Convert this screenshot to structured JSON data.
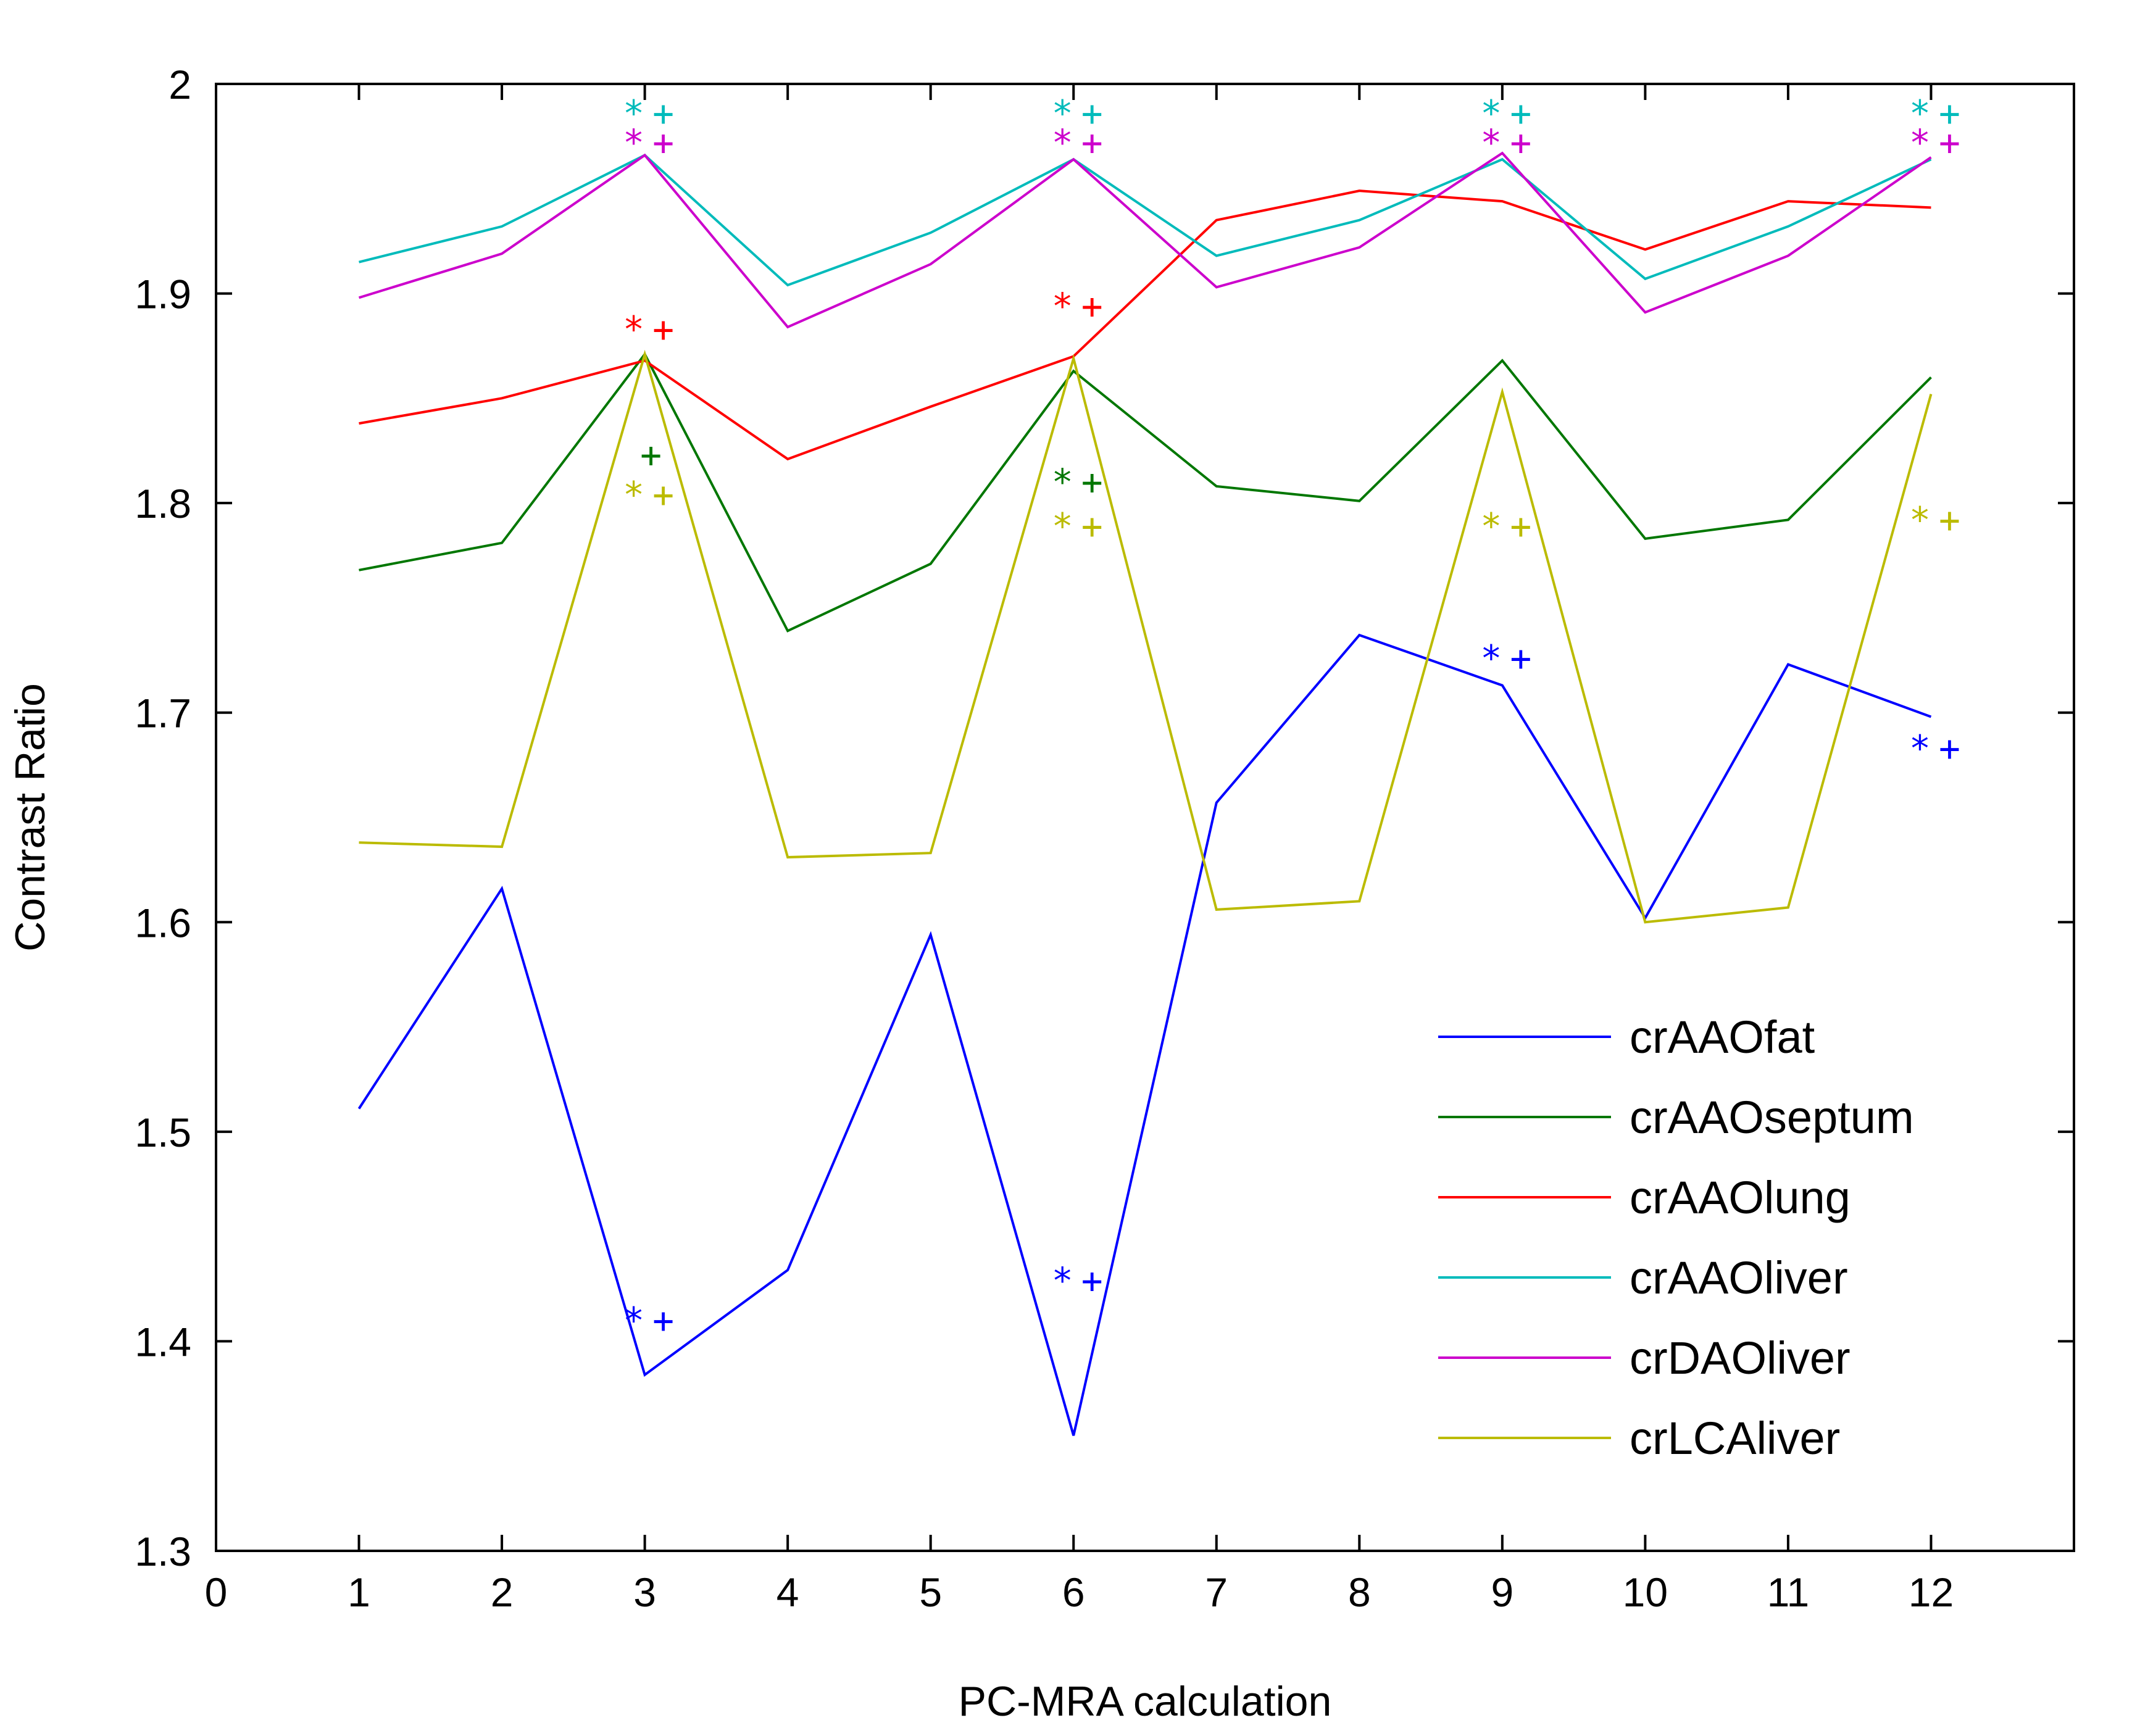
{
  "chart_data": {
    "type": "line",
    "title": "",
    "xlabel": "PC-MRA calculation",
    "ylabel": "Contrast Ratio",
    "xlim": [
      0,
      13
    ],
    "ylim": [
      1.3,
      2.0
    ],
    "xticks": [
      0,
      1,
      2,
      3,
      4,
      5,
      6,
      7,
      8,
      9,
      10,
      11,
      12
    ],
    "yticks": [
      1.3,
      1.4,
      1.5,
      1.6,
      1.7,
      1.8,
      1.9,
      2.0
    ],
    "ytick_labels": [
      "1.3",
      "1.4",
      "1.5",
      "1.6",
      "1.7",
      "1.8",
      "1.9",
      "2"
    ],
    "grid": false,
    "legend_position": "lower-right",
    "x": [
      1,
      2,
      3,
      4,
      5,
      6,
      7,
      8,
      9,
      10,
      11,
      12
    ],
    "series": [
      {
        "name": "crAAOfat",
        "color": "#0000ff",
        "values": [
          1.511,
          1.616,
          1.384,
          1.434,
          1.594,
          1.355,
          1.657,
          1.737,
          1.713,
          1.602,
          1.723,
          1.698
        ]
      },
      {
        "name": "crAAOseptum",
        "color": "#007700",
        "values": [
          1.768,
          1.781,
          1.871,
          1.739,
          1.771,
          1.863,
          1.808,
          1.801,
          1.868,
          1.783,
          1.792,
          1.86
        ]
      },
      {
        "name": "crAAOlung",
        "color": "#ff0000",
        "values": [
          1.838,
          1.85,
          1.868,
          1.821,
          1.846,
          1.87,
          1.935,
          1.949,
          1.944,
          1.921,
          1.944,
          1.941
        ]
      },
      {
        "name": "crAAOliver",
        "color": "#00bbbb",
        "values": [
          1.915,
          1.932,
          1.966,
          1.904,
          1.929,
          1.964,
          1.918,
          1.935,
          1.964,
          1.907,
          1.932,
          1.964
        ]
      },
      {
        "name": "crDAOliver",
        "color": "#cc00cc",
        "values": [
          1.898,
          1.919,
          1.966,
          1.884,
          1.914,
          1.964,
          1.903,
          1.922,
          1.967,
          1.891,
          1.918,
          1.965
        ]
      },
      {
        "name": "crLCAliver",
        "color": "#bbbb00",
        "values": [
          1.638,
          1.636,
          1.871,
          1.631,
          1.633,
          1.869,
          1.606,
          1.61,
          1.853,
          1.6,
          1.607,
          1.852
        ]
      }
    ],
    "significance_markers": [
      {
        "series": "crAAOliver",
        "x": 3,
        "y": 1.986,
        "symbols": [
          "*",
          "+"
        ]
      },
      {
        "series": "crAAOliver",
        "x": 6,
        "y": 1.986,
        "symbols": [
          "*",
          "+"
        ]
      },
      {
        "series": "crAAOliver",
        "x": 9,
        "y": 1.986,
        "symbols": [
          "*",
          "+"
        ]
      },
      {
        "series": "crAAOliver",
        "x": 12,
        "y": 1.986,
        "symbols": [
          "*",
          "+"
        ]
      },
      {
        "series": "crDAOliver",
        "x": 3,
        "y": 1.972,
        "symbols": [
          "*",
          "+"
        ]
      },
      {
        "series": "crDAOliver",
        "x": 6,
        "y": 1.972,
        "symbols": [
          "*",
          "+"
        ]
      },
      {
        "series": "crDAOliver",
        "x": 9,
        "y": 1.972,
        "symbols": [
          "*",
          "+"
        ]
      },
      {
        "series": "crDAOliver",
        "x": 12,
        "y": 1.972,
        "symbols": [
          "*",
          "+"
        ]
      },
      {
        "series": "crAAOlung",
        "x": 3,
        "y": 1.883,
        "symbols": [
          "*",
          "+"
        ]
      },
      {
        "series": "crAAOlung",
        "x": 6,
        "y": 1.894,
        "symbols": [
          "*",
          "+"
        ]
      },
      {
        "series": "crAAOseptum",
        "x": 3,
        "y": 1.823,
        "symbols": [
          "+"
        ]
      },
      {
        "series": "crAAOseptum",
        "x": 6,
        "y": 1.81,
        "symbols": [
          "*",
          "+"
        ]
      },
      {
        "series": "crLCAliver",
        "x": 3,
        "y": 1.804,
        "symbols": [
          "*",
          "+"
        ]
      },
      {
        "series": "crLCAliver",
        "x": 6,
        "y": 1.789,
        "symbols": [
          "*",
          "+"
        ]
      },
      {
        "series": "crLCAliver",
        "x": 9,
        "y": 1.789,
        "symbols": [
          "*",
          "+"
        ]
      },
      {
        "series": "crLCAliver",
        "x": 12,
        "y": 1.792,
        "symbols": [
          "*",
          "+"
        ]
      },
      {
        "series": "crAAOfat",
        "x": 3,
        "y": 1.41,
        "symbols": [
          "*",
          "+"
        ]
      },
      {
        "series": "crAAOfat",
        "x": 6,
        "y": 1.429,
        "symbols": [
          "*",
          "+"
        ]
      },
      {
        "series": "crAAOfat",
        "x": 9,
        "y": 1.726,
        "symbols": [
          "*",
          "+"
        ]
      },
      {
        "series": "crAAOfat",
        "x": 12,
        "y": 1.683,
        "symbols": [
          "*",
          "+"
        ]
      }
    ]
  }
}
